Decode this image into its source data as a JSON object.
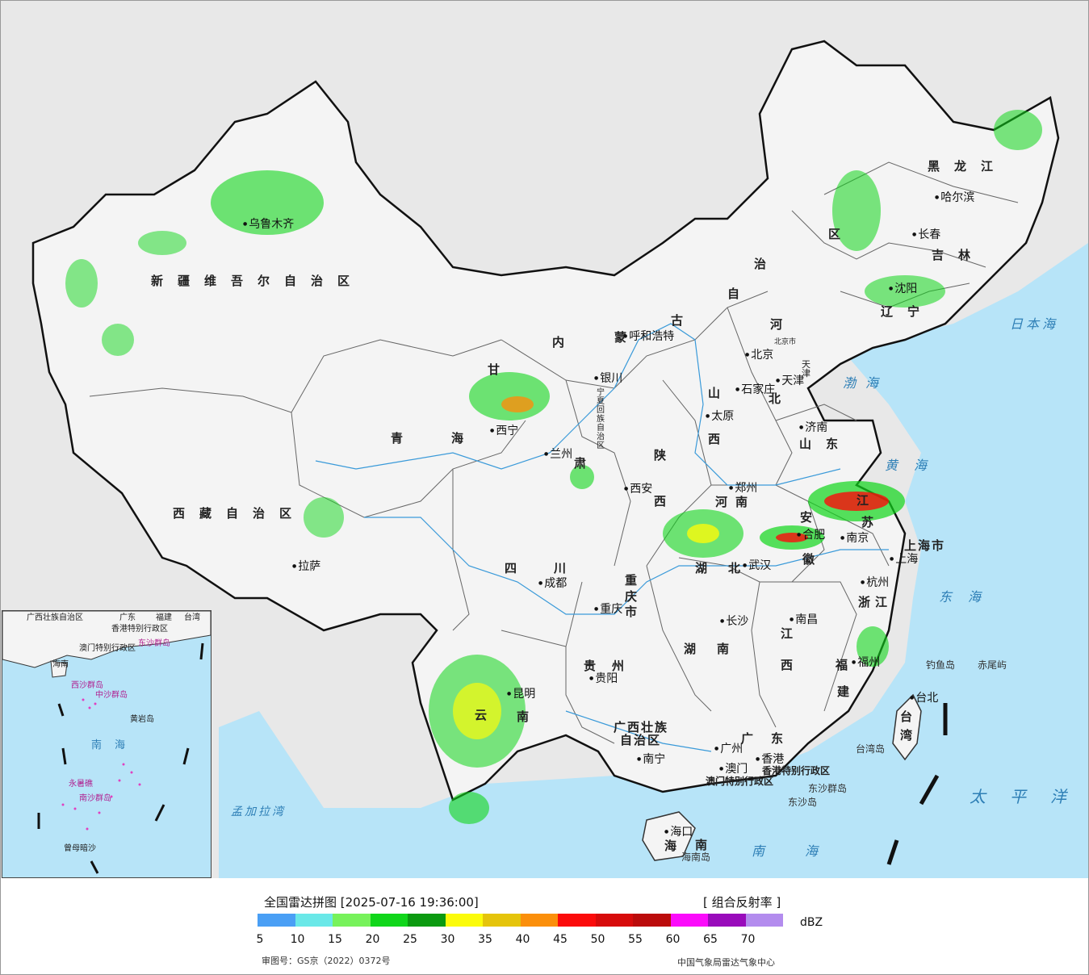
{
  "map": {
    "provinces": [
      {
        "id": "xinjiang",
        "label": "新疆维吾尔自治区"
      },
      {
        "id": "xizang",
        "label": "西藏自治区"
      },
      {
        "id": "qinghai",
        "label": "青海"
      },
      {
        "id": "neimenggu-1",
        "label": "内"
      },
      {
        "id": "neimenggu-2",
        "label": "蒙"
      },
      {
        "id": "neimenggu-3",
        "label": "古"
      },
      {
        "id": "neimenggu-4",
        "label": "自"
      },
      {
        "id": "neimenggu-5",
        "label": "治"
      },
      {
        "id": "neimenggu-6",
        "label": "区"
      },
      {
        "id": "heilongjiang",
        "label": "黑龙江"
      },
      {
        "id": "jilin",
        "label": "吉林"
      },
      {
        "id": "liaoning",
        "label": "辽宁"
      },
      {
        "id": "hebei-1",
        "label": "河"
      },
      {
        "id": "hebei-2",
        "label": "北"
      },
      {
        "id": "shanxi-1",
        "label": "山"
      },
      {
        "id": "shanxi-2",
        "label": "西"
      },
      {
        "id": "shandong",
        "label": "山东"
      },
      {
        "id": "gansu",
        "label": "甘"
      },
      {
        "id": "gansu-2",
        "label": "肃"
      },
      {
        "id": "ningxia",
        "label": "宁夏回族自治区"
      },
      {
        "id": "shaanxi-1",
        "label": "陕"
      },
      {
        "id": "shaanxi-2",
        "label": "西"
      },
      {
        "id": "henan",
        "label": "河南"
      },
      {
        "id": "jiangsu-1",
        "label": "江"
      },
      {
        "id": "jiangsu-2",
        "label": "苏"
      },
      {
        "id": "anhui-1",
        "label": "安"
      },
      {
        "id": "anhui-2",
        "label": "徽"
      },
      {
        "id": "hubei",
        "label": "湖北"
      },
      {
        "id": "sichuan",
        "label": "四川"
      },
      {
        "id": "chongqing",
        "label": "重庆市"
      },
      {
        "id": "shanghai",
        "label": "上海市"
      },
      {
        "id": "zhejiang",
        "label": "浙江"
      },
      {
        "id": "jiangxi-1",
        "label": "江"
      },
      {
        "id": "jiangxi-2",
        "label": "西"
      },
      {
        "id": "hunan",
        "label": "湖南"
      },
      {
        "id": "guizhou",
        "label": "贵州"
      },
      {
        "id": "yunnan-1",
        "label": "云"
      },
      {
        "id": "yunnan-2",
        "label": "南"
      },
      {
        "id": "fujian-1",
        "label": "福"
      },
      {
        "id": "fujian-2",
        "label": "建"
      },
      {
        "id": "guangxi-1",
        "label": "广西壮族"
      },
      {
        "id": "guangxi-2",
        "label": "自治区"
      },
      {
        "id": "guangdong",
        "label": "广东"
      },
      {
        "id": "hainan-1",
        "label": "海"
      },
      {
        "id": "hainan-2",
        "label": "南"
      },
      {
        "id": "taiwan-1",
        "label": "台"
      },
      {
        "id": "taiwan-2",
        "label": "湾"
      },
      {
        "id": "tianjin",
        "label": "天津"
      },
      {
        "id": "hongkong",
        "label": "香港特别行政区"
      },
      {
        "id": "macau",
        "label": "澳门特别行政区"
      }
    ],
    "cities": [
      {
        "id": "urumqi",
        "label": "乌鲁木齐"
      },
      {
        "id": "lhasa",
        "label": "拉萨"
      },
      {
        "id": "xining",
        "label": "西宁"
      },
      {
        "id": "lanzhou",
        "label": "兰州"
      },
      {
        "id": "yinchuan",
        "label": "银川"
      },
      {
        "id": "hohhot",
        "label": "呼和浩特"
      },
      {
        "id": "beijing",
        "label": "北京"
      },
      {
        "id": "beijing-city",
        "label": "北京市"
      },
      {
        "id": "tianjin",
        "label": "天津"
      },
      {
        "id": "shijiazhuang",
        "label": "石家庄"
      },
      {
        "id": "taiyuan",
        "label": "太原"
      },
      {
        "id": "jinan",
        "label": "济南"
      },
      {
        "id": "zhengzhou",
        "label": "郑州"
      },
      {
        "id": "xian",
        "label": "西安"
      },
      {
        "id": "chengdu",
        "label": "成都"
      },
      {
        "id": "chongqing",
        "label": "重庆"
      },
      {
        "id": "wuhan",
        "label": "武汉"
      },
      {
        "id": "hefei",
        "label": "合肥"
      },
      {
        "id": "nanjing",
        "label": "南京"
      },
      {
        "id": "shanghai",
        "label": "上海"
      },
      {
        "id": "hangzhou",
        "label": "杭州"
      },
      {
        "id": "nanchang",
        "label": "南昌"
      },
      {
        "id": "changsha",
        "label": "长沙"
      },
      {
        "id": "guiyang",
        "label": "贵阳"
      },
      {
        "id": "kunming",
        "label": "昆明"
      },
      {
        "id": "nanning",
        "label": "南宁"
      },
      {
        "id": "guangzhou",
        "label": "广州"
      },
      {
        "id": "macau-city",
        "label": "澳门"
      },
      {
        "id": "hongkong-city",
        "label": "香港"
      },
      {
        "id": "fuzhou",
        "label": "福州"
      },
      {
        "id": "taibei",
        "label": "台北"
      },
      {
        "id": "haikou",
        "label": "海口"
      },
      {
        "id": "shenyang",
        "label": "沈阳"
      },
      {
        "id": "changchun",
        "label": "长春"
      },
      {
        "id": "harbin",
        "label": "哈尔滨"
      }
    ],
    "seas": [
      {
        "id": "bohai",
        "label": "渤海"
      },
      {
        "id": "huanghai",
        "label": "黄海"
      },
      {
        "id": "donghai",
        "label": "东海"
      },
      {
        "id": "nanhai",
        "label": "南海"
      },
      {
        "id": "taipingyang",
        "label": "太平洋"
      },
      {
        "id": "ribenhai",
        "label": "日本海"
      },
      {
        "id": "mengjialawan",
        "label": "孟加拉湾"
      }
    ],
    "islands": [
      {
        "id": "diaoyudao",
        "label": "钓鱼岛"
      },
      {
        "id": "chiweiyu",
        "label": "赤尾屿"
      },
      {
        "id": "taiwandao",
        "label": "台湾岛"
      },
      {
        "id": "dongshaqundao",
        "label": "东沙群岛"
      },
      {
        "id": "dongshadao",
        "label": "东沙岛"
      },
      {
        "id": "hainandao",
        "label": "海南岛"
      }
    ],
    "inset": [
      {
        "id": "in-guangxi",
        "label": "广西壮族自治区"
      },
      {
        "id": "in-guangdong",
        "label": "广东"
      },
      {
        "id": "in-fujian",
        "label": "福建"
      },
      {
        "id": "in-taiwan",
        "label": "台湾"
      },
      {
        "id": "in-aomen",
        "label": "澳门特别行政区"
      },
      {
        "id": "in-xianggang",
        "label": "香港特别行政区"
      },
      {
        "id": "in-dongsha",
        "label": "东沙群岛"
      },
      {
        "id": "in-hainan",
        "label": "海南"
      },
      {
        "id": "in-xisha",
        "label": "西沙群岛"
      },
      {
        "id": "in-zhongsha",
        "label": "中沙群岛"
      },
      {
        "id": "in-huangyan",
        "label": "黄岩岛"
      },
      {
        "id": "in-nanhai",
        "label": "南海"
      },
      {
        "id": "in-yongshu",
        "label": "永暑礁"
      },
      {
        "id": "in-nansha",
        "label": "南沙群岛"
      },
      {
        "id": "in-zengmu",
        "label": "曾母暗沙"
      }
    ]
  },
  "legend": {
    "title": "全国雷达拼图 [2025-07-16 19:36:00]",
    "mode": "[ 组合反射率 ]",
    "unit": "dBZ",
    "colors": [
      "#4a9ff5",
      "#6ae8e8",
      "#77f25b",
      "#10d61a",
      "#0b9a10",
      "#fbfb0b",
      "#e5c40b",
      "#fb8f0b",
      "#fb0b0b",
      "#d70b0b",
      "#bb0b0b",
      "#fb0bfb",
      "#990bbb",
      "#b38cee"
    ],
    "ticks": [
      "5",
      "10",
      "15",
      "20",
      "25",
      "30",
      "35",
      "40",
      "45",
      "50",
      "55",
      "60",
      "65",
      "70"
    ],
    "review_number": "审图号：GS京（2022）0372号",
    "credit": "中国气象局雷达气象中心"
  }
}
